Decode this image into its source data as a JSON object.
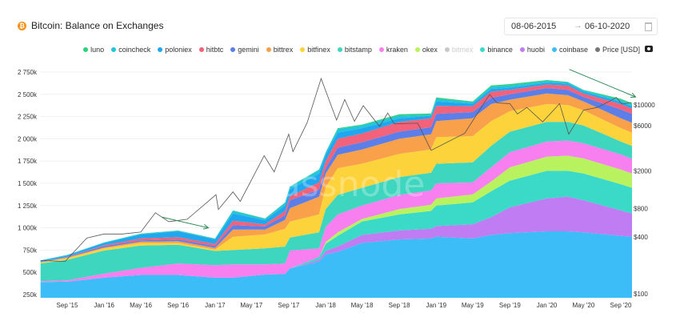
{
  "header": {
    "title": "Bitcoin: Balance on Exchanges",
    "icon": "bitcoin-icon"
  },
  "date_range": {
    "start": "08-06-2015",
    "separator": "→",
    "end": "06-10-2020",
    "icon": "calendar-icon"
  },
  "toolbar": {
    "screenshot_icon": "camera-icon"
  },
  "legend": [
    {
      "key": "luno",
      "label": "luno",
      "color": "#2fd07c",
      "enabled": true
    },
    {
      "key": "coincheck",
      "label": "coincheck",
      "color": "#23c4dc",
      "enabled": true
    },
    {
      "key": "poloniex",
      "label": "poloniex",
      "color": "#1fa7f0",
      "enabled": true
    },
    {
      "key": "hitbtc",
      "label": "hitbtc",
      "color": "#f2627a",
      "enabled": true
    },
    {
      "key": "gemini",
      "label": "gemini",
      "color": "#5b7ee8",
      "enabled": true
    },
    {
      "key": "bittrex",
      "label": "bittrex",
      "color": "#f8a04a",
      "enabled": true
    },
    {
      "key": "bitfinex",
      "label": "bitfinex",
      "color": "#fdd33c",
      "enabled": true
    },
    {
      "key": "bitstamp",
      "label": "bitstamp",
      "color": "#3ed6be",
      "enabled": true
    },
    {
      "key": "kraken",
      "label": "kraken",
      "color": "#f77ff0",
      "enabled": true
    },
    {
      "key": "okex",
      "label": "okex",
      "color": "#b8f25e",
      "enabled": true
    },
    {
      "key": "bitmex",
      "label": "bitmex",
      "color": "#c8c8c8",
      "enabled": false
    },
    {
      "key": "binance",
      "label": "binance",
      "color": "#3ad9c8",
      "enabled": true
    },
    {
      "key": "huobi",
      "label": "huobi",
      "color": "#c07cf2",
      "enabled": true
    },
    {
      "key": "coinbase",
      "label": "coinbase",
      "color": "#3dbdf7",
      "enabled": true
    },
    {
      "key": "price",
      "label": "Price [USD]",
      "color": "#777777",
      "enabled": true
    }
  ],
  "chart_data": {
    "type": "area",
    "stacked": true,
    "title": "Bitcoin: Balance on Exchanges",
    "watermark": "glassnode",
    "y_left": {
      "ticks": [
        "250k",
        "500k",
        "750k",
        "1 000k",
        "1 250k",
        "1 500k",
        "1 750k",
        "2 000k",
        "2 250k",
        "2 500k",
        "2 750k"
      ],
      "tick_values": [
        250,
        500,
        750,
        1000,
        1250,
        1500,
        1750,
        2000,
        2250,
        2500,
        2750
      ],
      "unit": "thousand BTC",
      "range": [
        250,
        2750
      ]
    },
    "y_right": {
      "scale": "log",
      "ticks": [
        "$100",
        "$400",
        "$800",
        "$2000",
        "$6000",
        "$10000"
      ],
      "tick_values": [
        100,
        400,
        800,
        2000,
        6000,
        10000
      ]
    },
    "x_axis": {
      "ticks": [
        "Sep '15",
        "Jan '16",
        "May '16",
        "Sep '16",
        "Jan '17",
        "May '17",
        "Sep '17",
        "Jan '18",
        "May '18",
        "Sep '18",
        "Jan '19",
        "May '19",
        "Sep '19",
        "Jan '20",
        "May '20",
        "Sep '20"
      ],
      "tick_dates": [
        "2015-09-01",
        "2016-01-01",
        "2016-05-01",
        "2016-09-01",
        "2017-01-01",
        "2017-05-01",
        "2017-09-01",
        "2018-01-01",
        "2018-05-01",
        "2018-09-01",
        "2019-01-01",
        "2019-05-01",
        "2019-09-01",
        "2020-01-01",
        "2020-05-01",
        "2020-09-01"
      ]
    },
    "grid": true,
    "legend_position": "top-right",
    "dates": [
      "2015-06-05",
      "2015-09-01",
      "2016-01-01",
      "2016-05-01",
      "2016-09-01",
      "2017-01-01",
      "2017-03-01",
      "2017-06-15",
      "2017-08-20",
      "2017-09-05",
      "2017-12-10",
      "2018-01-01",
      "2018-02-10",
      "2018-05-01",
      "2018-09-01",
      "2018-12-15",
      "2019-01-01",
      "2019-05-01",
      "2019-07-01",
      "2019-09-01",
      "2020-01-01",
      "2020-03-10",
      "2020-05-01",
      "2020-09-01",
      "2020-10-08"
    ],
    "series": [
      {
        "name": "coinbase",
        "values": [
          390,
          395,
          440,
          470,
          470,
          440,
          440,
          475,
          480,
          545,
          620,
          700,
          730,
          830,
          870,
          880,
          900,
          880,
          920,
          940,
          960,
          960,
          950,
          910,
          900
        ]
      },
      {
        "name": "huobi",
        "values": [
          0,
          0,
          0,
          0,
          0,
          0,
          0,
          0,
          0,
          0,
          20,
          40,
          60,
          90,
          100,
          110,
          120,
          160,
          200,
          290,
          370,
          390,
          360,
          285,
          260
        ]
      },
      {
        "name": "binance",
        "values": [
          0,
          0,
          0,
          0,
          0,
          0,
          0,
          0,
          0,
          0,
          30,
          80,
          120,
          150,
          180,
          200,
          230,
          245,
          290,
          300,
          310,
          290,
          300,
          295,
          290
        ]
      },
      {
        "name": "okex",
        "values": [
          0,
          0,
          0,
          0,
          0,
          0,
          0,
          0,
          0,
          0,
          0,
          20,
          40,
          30,
          60,
          70,
          80,
          90,
          110,
          150,
          160,
          170,
          170,
          165,
          160
        ]
      },
      {
        "name": "kraken",
        "values": [
          10,
          15,
          45,
          80,
          130,
          140,
          150,
          115,
          120,
          200,
          100,
          170,
          200,
          150,
          160,
          160,
          170,
          135,
          160,
          170,
          170,
          170,
          170,
          170,
          165
        ]
      },
      {
        "name": "bitstamp",
        "values": [
          200,
          230,
          260,
          250,
          210,
          160,
          160,
          180,
          190,
          145,
          180,
          200,
          220,
          200,
          200,
          200,
          220,
          225,
          240,
          230,
          220,
          210,
          200,
          145,
          145
        ]
      },
      {
        "name": "bitfinex",
        "values": [
          10,
          20,
          25,
          30,
          20,
          15,
          150,
          155,
          200,
          180,
          200,
          250,
          300,
          270,
          260,
          260,
          300,
          295,
          280,
          230,
          200,
          190,
          170,
          150,
          150
        ]
      },
      {
        "name": "bittrex",
        "values": [
          2,
          5,
          10,
          15,
          20,
          20,
          80,
          55,
          100,
          150,
          200,
          150,
          150,
          160,
          170,
          170,
          180,
          200,
          190,
          130,
          120,
          110,
          100,
          110,
          110
        ]
      },
      {
        "name": "gemini",
        "values": [
          5,
          5,
          15,
          15,
          20,
          20,
          50,
          35,
          50,
          90,
          80,
          60,
          80,
          80,
          80,
          80,
          80,
          70,
          70,
          60,
          60,
          60,
          50,
          100,
          100
        ]
      },
      {
        "name": "hitbtc",
        "values": [
          2,
          5,
          10,
          20,
          25,
          25,
          50,
          25,
          50,
          45,
          80,
          80,
          100,
          100,
          110,
          100,
          90,
          65,
          70,
          50,
          40,
          50,
          40,
          60,
          60
        ]
      },
      {
        "name": "poloniex",
        "values": [
          10,
          15,
          25,
          45,
          65,
          50,
          80,
          45,
          60,
          75,
          100,
          70,
          70,
          60,
          40,
          30,
          50,
          30,
          30,
          25,
          20,
          20,
          20,
          25,
          25
        ]
      },
      {
        "name": "coincheck",
        "values": [
          5,
          5,
          5,
          8,
          8,
          8,
          30,
          15,
          30,
          30,
          40,
          25,
          40,
          30,
          30,
          10,
          30,
          15,
          25,
          25,
          20,
          15,
          15,
          20,
          20
        ]
      },
      {
        "name": "luno",
        "values": [
          1,
          1,
          2,
          2,
          2,
          2,
          5,
          5,
          5,
          5,
          5,
          5,
          10,
          10,
          15,
          15,
          15,
          10,
          15,
          15,
          10,
          5,
          5,
          15,
          15
        ]
      }
    ],
    "price": {
      "name": "Price [USD]",
      "dates": [
        "2015-06-05",
        "2015-08-25",
        "2015-11-05",
        "2016-01-01",
        "2016-03-01",
        "2016-05-01",
        "2016-06-18",
        "2016-08-01",
        "2016-10-01",
        "2017-01-04",
        "2017-01-12",
        "2017-03-01",
        "2017-03-25",
        "2017-06-12",
        "2017-07-15",
        "2017-09-01",
        "2017-09-15",
        "2017-11-01",
        "2017-12-17",
        "2018-02-06",
        "2018-03-05",
        "2018-04-06",
        "2018-05-05",
        "2018-06-28",
        "2018-07-25",
        "2018-08-15",
        "2018-11-01",
        "2018-12-15",
        "2019-04-05",
        "2019-06-26",
        "2019-07-20",
        "2019-09-01",
        "2019-09-26",
        "2019-10-27",
        "2019-12-18",
        "2020-02-12",
        "2020-03-13",
        "2020-05-01",
        "2020-06-15",
        "2020-07-30",
        "2020-08-17",
        "2020-09-05",
        "2020-10-06"
      ],
      "values": [
        225,
        220,
        390,
        430,
        430,
        450,
        720,
        580,
        615,
        1120,
        780,
        1200,
        950,
        2900,
        1950,
        4900,
        3200,
        6500,
        19000,
        6900,
        11400,
        6700,
        9800,
        5900,
        8200,
        6300,
        6400,
        3300,
        5000,
        12900,
        10500,
        10300,
        8000,
        9400,
        6600,
        10300,
        4900,
        8800,
        9400,
        11100,
        12000,
        10200,
        10600
      ]
    },
    "annotations": [
      {
        "type": "arrow",
        "color": "#2e8b57",
        "from_date": "2016-07-10",
        "to_date": "2016-12-10",
        "from_value": 1120,
        "to_value": 1000,
        "axis": "left"
      },
      {
        "type": "arrow",
        "color": "#2e8b57",
        "from_date": "2020-03-15",
        "to_date": "2020-10-20",
        "from_value": 2780,
        "to_value": 2470,
        "axis": "left"
      }
    ]
  }
}
